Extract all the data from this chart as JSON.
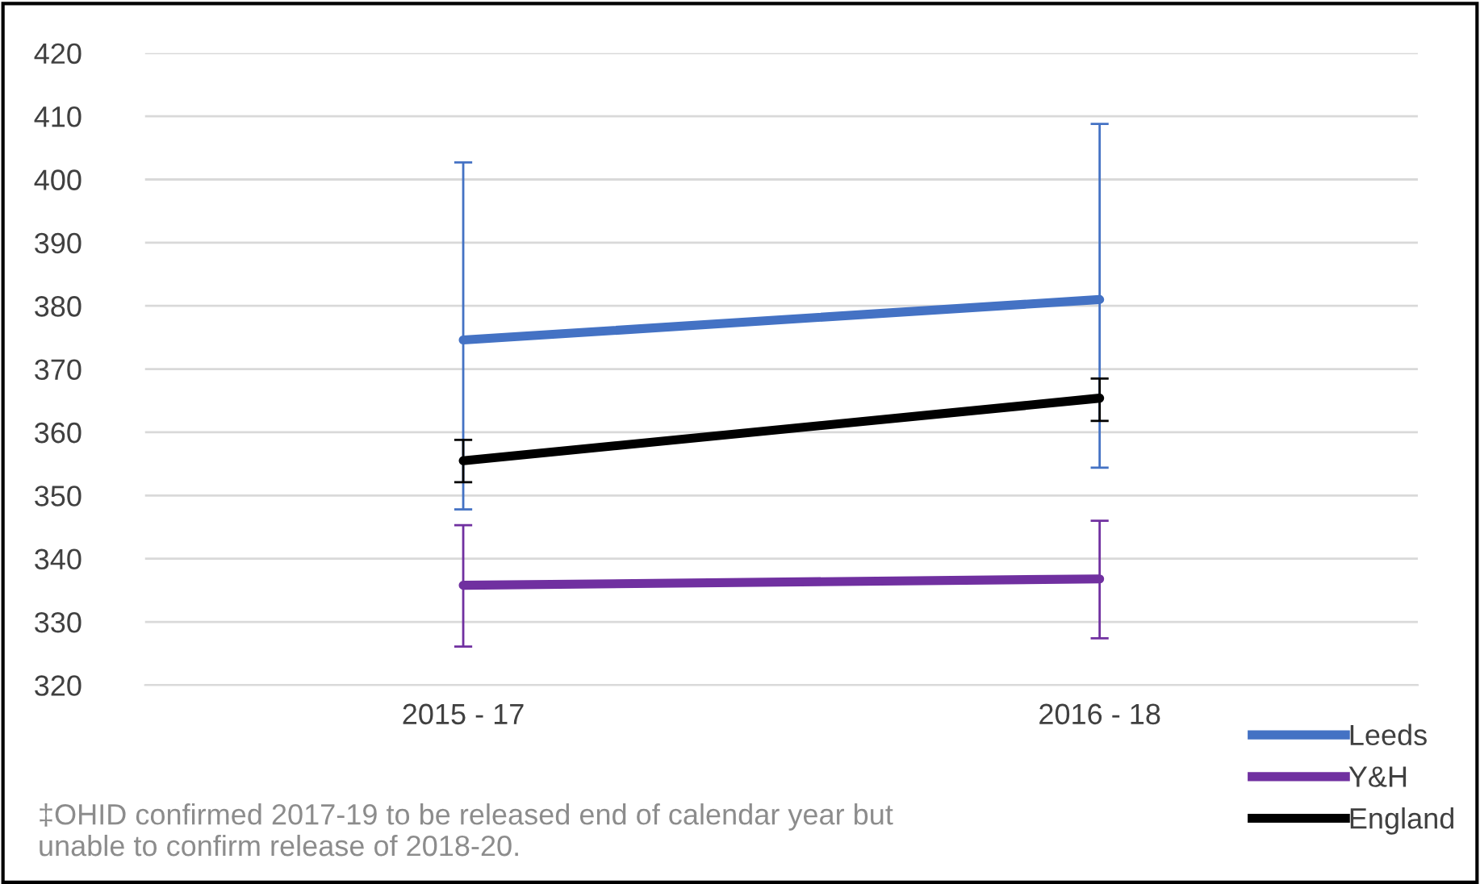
{
  "chart_data": {
    "type": "line",
    "categories": [
      "2015 - 17",
      "2016 - 18"
    ],
    "series": [
      {
        "name": "Leeds",
        "color": "#4472c4",
        "values": [
          374.6,
          381.0
        ],
        "errors": [
          [
            347.8,
            402.7
          ],
          [
            354.4,
            408.8
          ]
        ]
      },
      {
        "name": "Y&H",
        "color": "#7030a0",
        "values": [
          335.8,
          336.8
        ],
        "errors": [
          [
            326.1,
            345.3
          ],
          [
            327.4,
            346.0
          ]
        ]
      },
      {
        "name": "England",
        "color": "#000000",
        "values": [
          355.5,
          365.4
        ],
        "errors": [
          [
            352.1,
            358.8
          ],
          [
            361.8,
            368.5
          ]
        ]
      }
    ],
    "ylim": [
      320,
      420
    ],
    "yticks": [
      320,
      330,
      340,
      350,
      360,
      370,
      380,
      390,
      400,
      410,
      420
    ],
    "grid": "y",
    "legend": "bottom right",
    "marker": "none",
    "line_style": "solid",
    "annotations": [
      "‡OHID confirmed 2017-19 to be released end of calendar year but unable to confirm release of 2018-20."
    ]
  }
}
